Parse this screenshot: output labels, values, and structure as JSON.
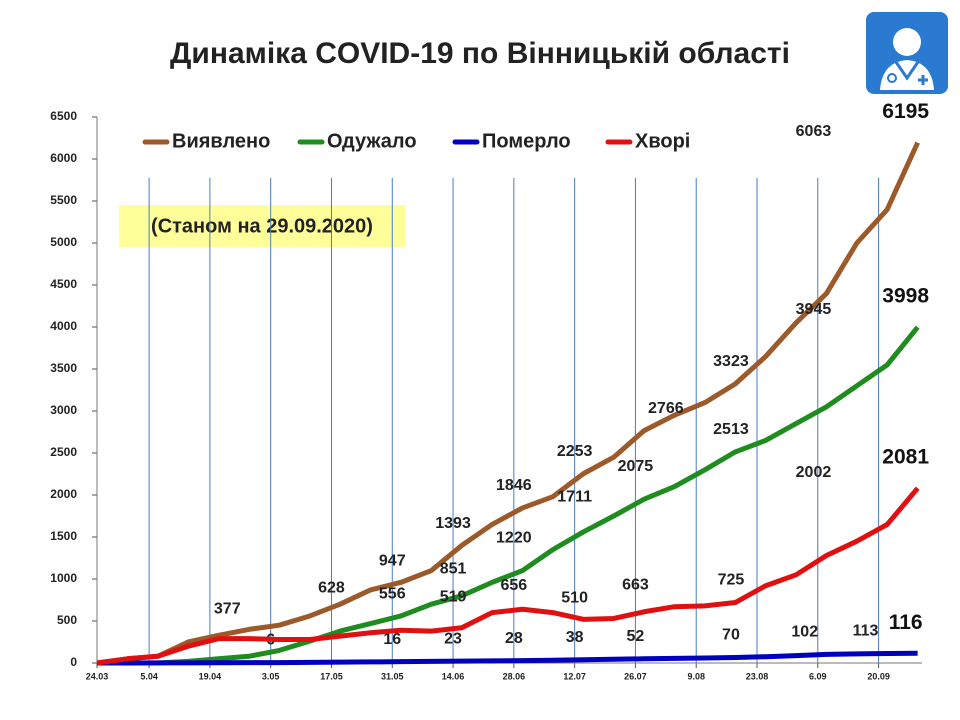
{
  "chart_data": {
    "type": "line",
    "title": "Динаміка COVID-19 по Вінницькій області",
    "subtitle": "(Станом на 29.09.2020)",
    "x": [
      0,
      7,
      14,
      21,
      28,
      35,
      42,
      49,
      56,
      63,
      70,
      77,
      84,
      91,
      98,
      105,
      112,
      119,
      126,
      133,
      140,
      147,
      154,
      161,
      168,
      175,
      182,
      189
    ],
    "xlim": [
      0,
      190
    ],
    "xticks": [
      {
        "value": 0,
        "label": "24.03"
      },
      {
        "value": 12,
        "label": "5.04"
      },
      {
        "value": 26,
        "label": "19.04"
      },
      {
        "value": 40,
        "label": "3.05"
      },
      {
        "value": 54,
        "label": "17.05"
      },
      {
        "value": 68,
        "label": "31.05"
      },
      {
        "value": 82,
        "label": "14.06"
      },
      {
        "value": 96,
        "label": "28.06"
      },
      {
        "value": 110,
        "label": "12.07"
      },
      {
        "value": 124,
        "label": "26.07"
      },
      {
        "value": 138,
        "label": "9.08"
      },
      {
        "value": 152,
        "label": "23.08"
      },
      {
        "value": 166,
        "label": "6.09"
      },
      {
        "value": 180,
        "label": "20.09"
      }
    ],
    "ylim": [
      0,
      6500
    ],
    "yticks": [
      0,
      500,
      1000,
      1500,
      2000,
      2500,
      3000,
      3500,
      4000,
      4500,
      5000,
      5500,
      6000,
      6500
    ],
    "grid": "x",
    "legend": "top",
    "series": [
      {
        "name": "Виявлено",
        "color": "#9c5a2a",
        "values": [
          0,
          50,
          80,
          250,
          330,
          400,
          450,
          560,
          700,
          870,
          960,
          1100,
          1400,
          1650,
          1846,
          1980,
          2253,
          2450,
          2766,
          2950,
          3100,
          3323,
          3650,
          4050,
          4400,
          5000,
          5400,
          6195
        ],
        "labels": [
          {
            "x": 30,
            "value": 377
          },
          {
            "x": 54,
            "value": 628
          },
          {
            "x": 68,
            "value": 947
          },
          {
            "x": 82,
            "value": 1393
          },
          {
            "x": 96,
            "value": 1846
          },
          {
            "x": 110,
            "value": 2253
          },
          {
            "x": 131,
            "value": 2766
          },
          {
            "x": 146,
            "value": 3323
          },
          {
            "x": 165,
            "value": 6063
          }
        ]
      },
      {
        "name": "Одужало",
        "color": "#1e8c1e",
        "values": [
          0,
          0,
          0,
          20,
          50,
          80,
          150,
          260,
          380,
          470,
          560,
          700,
          800,
          960,
          1100,
          1350,
          1560,
          1750,
          1950,
          2100,
          2300,
          2513,
          2650,
          2850,
          3050,
          3300,
          3550,
          3998
        ],
        "labels": [
          {
            "x": 68,
            "value": 556
          },
          {
            "x": 82,
            "value": 851
          },
          {
            "x": 96,
            "value": 1220
          },
          {
            "x": 110,
            "value": 1711
          },
          {
            "x": 124,
            "value": 2075
          },
          {
            "x": 146,
            "value": 2513
          },
          {
            "x": 165,
            "value": 3945
          }
        ]
      },
      {
        "name": "Померло",
        "color": "#0000c0",
        "values": [
          0,
          0,
          1,
          2,
          3,
          4,
          5,
          8,
          10,
          13,
          16,
          19,
          23,
          25,
          28,
          33,
          38,
          44,
          50,
          55,
          60,
          66,
          75,
          88,
          102,
          108,
          113,
          116
        ],
        "labels": [
          {
            "x": 40,
            "value": 6
          },
          {
            "x": 68,
            "value": 16
          },
          {
            "x": 82,
            "value": 23
          },
          {
            "x": 96,
            "value": 28
          },
          {
            "x": 110,
            "value": 38
          },
          {
            "x": 124,
            "value": 52
          },
          {
            "x": 146,
            "value": 70
          },
          {
            "x": 163,
            "value": 102
          },
          {
            "x": 177,
            "value": 113
          }
        ]
      },
      {
        "name": "Хворі",
        "color": "#e01010",
        "values": [
          0,
          50,
          80,
          200,
          290,
          290,
          280,
          280,
          320,
          360,
          390,
          380,
          420,
          600,
          640,
          600,
          520,
          530,
          610,
          670,
          680,
          720,
          920,
          1050,
          1280,
          1450,
          1650,
          2081
        ],
        "labels": [
          {
            "x": 82,
            "value": 519
          },
          {
            "x": 96,
            "value": 656
          },
          {
            "x": 110,
            "value": 510
          },
          {
            "x": 124,
            "value": 663
          },
          {
            "x": 146,
            "value": 725
          },
          {
            "x": 165,
            "value": 2002
          }
        ]
      }
    ]
  }
}
